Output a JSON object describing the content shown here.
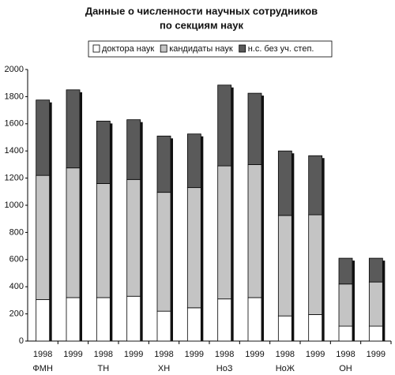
{
  "chart_data": {
    "type": "stacked_bar",
    "title": [
      "Данные о численности научных сотрудников",
      "по секциям наук"
    ],
    "categories": [
      "1998",
      "1999",
      "1998",
      "1999",
      "1998",
      "1999",
      "1998",
      "1999",
      "1998",
      "1999",
      "1998",
      "1999"
    ],
    "groups": [
      "ФМН",
      "ТН",
      "ХН",
      "НоЗ",
      "НоЖ",
      "ОН"
    ],
    "series": [
      {
        "name": "доктора наук",
        "color": "#ffffff",
        "values": [
          305,
          320,
          320,
          330,
          220,
          245,
          310,
          320,
          185,
          195,
          110,
          110
        ]
      },
      {
        "name": "кандидаты наук",
        "color": "#c4c4c4",
        "values": [
          915,
          955,
          840,
          860,
          875,
          885,
          980,
          980,
          740,
          735,
          310,
          325
        ]
      },
      {
        "name": "н.с. без уч. степ.",
        "color": "#5a5a5a",
        "values": [
          555,
          575,
          460,
          440,
          415,
          395,
          595,
          525,
          475,
          435,
          190,
          175
        ]
      }
    ],
    "ylim": [
      0,
      2000
    ],
    "yticks": [
      0,
      200,
      400,
      600,
      800,
      1000,
      1200,
      1400,
      1600,
      1800,
      2000
    ],
    "grid": false,
    "legend": "top"
  }
}
